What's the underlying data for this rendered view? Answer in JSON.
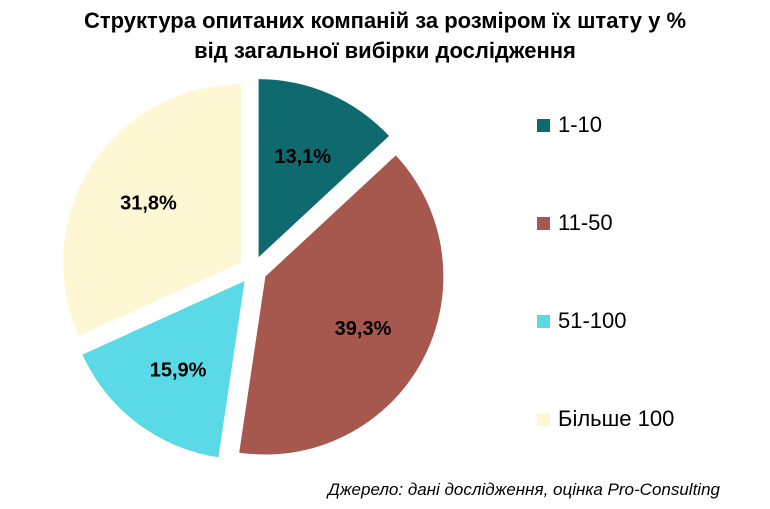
{
  "title": {
    "line1": "Структура опитаних компаній за розміром їх штату у %",
    "line2": "від загальної вибірки дослідження"
  },
  "chart_data": {
    "type": "pie",
    "categories": [
      "1-10",
      "11-50",
      "51-100",
      "Більше 100"
    ],
    "values": [
      13.1,
      39.3,
      15.9,
      31.8
    ],
    "labels": [
      "13,1%",
      "39,3%",
      "15,9%",
      "31,8%"
    ],
    "colors": [
      "#0f6a6f",
      "#a6574e",
      "#5ad9e6",
      "#fdf7d4"
    ],
    "unit": "%",
    "legend_position": "right",
    "exploded": true
  },
  "source": "Джерело: дані дослідження, оцінка Pro-Consulting"
}
